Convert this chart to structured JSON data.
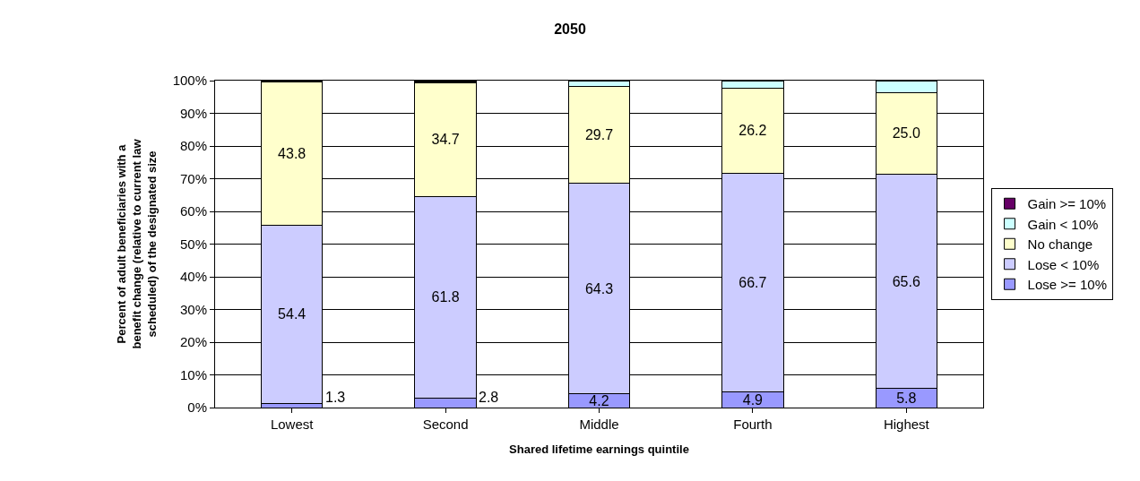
{
  "chart_data": {
    "type": "bar",
    "stacked": true,
    "title": "2050",
    "xlabel": "Shared lifetime earnings quintile",
    "ylabel": "Percent of adult beneficiaries with a benefit change (relative to current law scheduled) of the designated size",
    "categories": [
      "Lowest",
      "Second",
      "Middle",
      "Fourth",
      "Highest"
    ],
    "series": [
      {
        "name": "Lose >= 10%",
        "color": "#9999ff",
        "values": [
          1.3,
          2.8,
          4.2,
          4.9,
          5.8
        ],
        "value_labels": [
          "1.3",
          "2.8",
          "4.2",
          "4.9",
          "5.8"
        ]
      },
      {
        "name": "Lose < 10%",
        "color": "#ccccff",
        "values": [
          54.4,
          61.8,
          64.3,
          66.7,
          65.6
        ],
        "value_labels": [
          "54.4",
          "61.8",
          "64.3",
          "66.7",
          "65.6"
        ]
      },
      {
        "name": "No change",
        "color": "#ffffcc",
        "values": [
          43.8,
          34.7,
          29.7,
          26.2,
          25.0
        ],
        "value_labels": [
          "43.8",
          "34.7",
          "29.7",
          "26.2",
          "25.0"
        ]
      },
      {
        "name": "Gain < 10%",
        "color": "#ccffff",
        "values": [
          0.2,
          0.4,
          1.8,
          2.2,
          3.6
        ]
      },
      {
        "name": "Gain >= 10%",
        "color": "#660066",
        "values": [
          0.3,
          0.3,
          0.0,
          0.0,
          0.0
        ]
      }
    ],
    "ylim": [
      0,
      100
    ],
    "yticks": [
      {
        "value": 0,
        "label": "0%"
      },
      {
        "value": 10,
        "label": "10%"
      },
      {
        "value": 20,
        "label": "20%"
      },
      {
        "value": 30,
        "label": "30%"
      },
      {
        "value": 40,
        "label": "40%"
      },
      {
        "value": 50,
        "label": "50%"
      },
      {
        "value": 60,
        "label": "60%"
      },
      {
        "value": 70,
        "label": "70%"
      },
      {
        "value": 80,
        "label": "80%"
      },
      {
        "value": 90,
        "label": "90%"
      },
      {
        "value": 100,
        "label": "100%"
      }
    ],
    "grid": "y",
    "legend": "right"
  }
}
